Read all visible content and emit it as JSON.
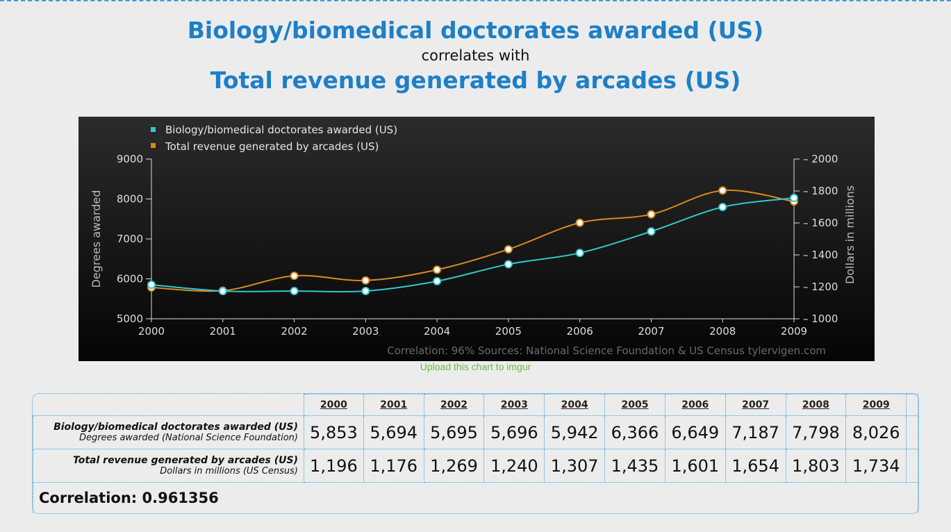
{
  "header": {
    "title1": "Biology/biomedical doctorates awarded (US)",
    "middle": "correlates with",
    "title2": "Total revenue generated by arcades (US)"
  },
  "upload_link": "Upload this chart to imgur",
  "colors": {
    "series1": "#2fc9cf",
    "series2": "#d98a1e",
    "title": "#1e7fc6",
    "link": "#6cba3c"
  },
  "chart_data": {
    "type": "line",
    "x": [
      2000,
      2001,
      2002,
      2003,
      2004,
      2005,
      2006,
      2007,
      2008,
      2009
    ],
    "series": [
      {
        "name": "Biology/biomedical doctorates awarded (US)",
        "axis": "left",
        "values": [
          5853,
          5694,
          5695,
          5696,
          5942,
          6366,
          6649,
          7187,
          7798,
          8026
        ]
      },
      {
        "name": "Total revenue generated by arcades (US)",
        "axis": "right",
        "values": [
          1196,
          1176,
          1269,
          1240,
          1307,
          1435,
          1601,
          1654,
          1803,
          1734
        ]
      }
    ],
    "ylabel": "Degrees awarded",
    "y2label": "Dollars in millions",
    "ylim": [
      5000,
      9000
    ],
    "y2lim": [
      1000,
      2000
    ],
    "yticks": [
      "5000",
      "6000",
      "7000",
      "8000",
      "9000"
    ],
    "y2ticks": [
      "1000",
      "1200",
      "1400",
      "1600",
      "1800",
      "2000"
    ],
    "legend": "top-left",
    "footer": "Correlation: 96%    Sources: National Science Foundation & US Census    tylervigen.com"
  },
  "table": {
    "years": [
      "2000",
      "2001",
      "2002",
      "2003",
      "2004",
      "2005",
      "2006",
      "2007",
      "2008",
      "2009"
    ],
    "rows": [
      {
        "label": "Biology/biomedical doctorates awarded (US)",
        "sublabel": "Degrees awarded (National Science Foundation)",
        "values": [
          "5,853",
          "5,694",
          "5,695",
          "5,696",
          "5,942",
          "6,366",
          "6,649",
          "7,187",
          "7,798",
          "8,026"
        ]
      },
      {
        "label": "Total revenue generated by arcades (US)",
        "sublabel": "Dollars in millions (US Census)",
        "values": [
          "1,196",
          "1,176",
          "1,269",
          "1,240",
          "1,307",
          "1,435",
          "1,601",
          "1,654",
          "1,803",
          "1,734"
        ]
      }
    ],
    "correlation": "Correlation: 0.961356"
  }
}
